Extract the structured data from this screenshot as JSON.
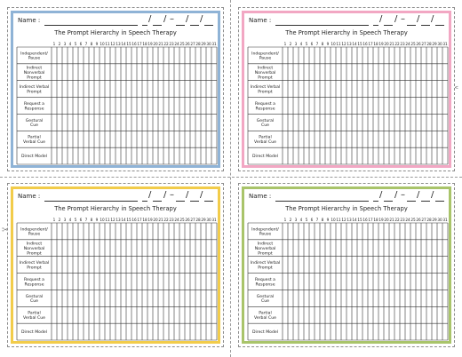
{
  "sheet": {
    "name_label": "Name :",
    "date_slash": "/",
    "date_dash": "–",
    "title": "The Prompt Hierarchy in Speech Therapy",
    "scissor_icon": "✂",
    "rows": [
      [
        "Independent/",
        "Pause"
      ],
      [
        "Indirect",
        "Nonverbal",
        "Prompt"
      ],
      [
        "Indirect Verbal",
        "Prompt"
      ],
      [
        "Request a",
        "Response"
      ],
      [
        "Gestural",
        "Cue"
      ],
      [
        "Partial",
        "Verbal Cue"
      ],
      [
        "Direct Model"
      ]
    ],
    "columns": [
      "1",
      "2",
      "3",
      "4",
      "5",
      "6",
      "7",
      "8",
      "9",
      "10",
      "11",
      "12",
      "13",
      "14",
      "15",
      "16",
      "17",
      "18",
      "19",
      "20",
      "21",
      "22",
      "23",
      "24",
      "25",
      "26",
      "27",
      "28",
      "29",
      "30",
      "31"
    ]
  },
  "cards": [
    {
      "id": "card-top-left",
      "border_color": "#8fb3d6"
    },
    {
      "id": "card-top-right",
      "border_color": "#f2a7c3"
    },
    {
      "id": "card-bottom-left",
      "border_color": "#f2cc4a"
    },
    {
      "id": "card-bottom-right",
      "border_color": "#a9c46a"
    }
  ]
}
